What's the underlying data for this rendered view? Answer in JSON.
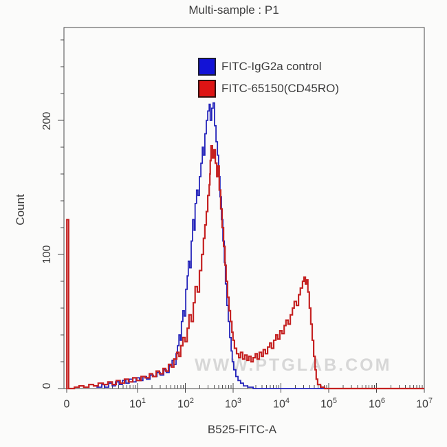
{
  "chart_data": {
    "type": "histogram-overlay",
    "title": "Multi-sample : P1",
    "xlabel": "B525-FITC-A",
    "ylabel": "Count",
    "watermark": "WWW.PTGLAB.COM",
    "x_scale": "biexponential: 0 tick at plot left edge, then log decades 10^1 to 10^7",
    "x_tick_parts": [
      {
        "base": "0",
        "exp": ""
      },
      {
        "base": "10",
        "exp": "1"
      },
      {
        "base": "10",
        "exp": "2"
      },
      {
        "base": "10",
        "exp": "3"
      },
      {
        "base": "10",
        "exp": "4"
      },
      {
        "base": "10",
        "exp": "5"
      },
      {
        "base": "10",
        "exp": "6"
      },
      {
        "base": "10",
        "exp": "7"
      }
    ],
    "y_tick_labels": [
      "0",
      "100",
      "200"
    ],
    "ylim": [
      0,
      269
    ],
    "grid": false,
    "legend_position": "top-center-inside",
    "point_format": "[fraction of x-axis width from 0-tick to 10^7, count]",
    "series": [
      {
        "name": "FITC-IgG2a control",
        "color": "#2424ba",
        "width": 1.8,
        "peak_summary": "single peak near 2.5x10^2, count ~213",
        "points": [
          [
            0.09,
            1
          ],
          [
            0.105,
            3
          ],
          [
            0.113,
            1
          ],
          [
            0.124,
            4
          ],
          [
            0.134,
            2
          ],
          [
            0.143,
            5
          ],
          [
            0.153,
            3
          ],
          [
            0.162,
            6
          ],
          [
            0.172,
            4
          ],
          [
            0.181,
            7
          ],
          [
            0.191,
            5
          ],
          [
            0.2,
            8
          ],
          [
            0.21,
            6
          ],
          [
            0.219,
            9
          ],
          [
            0.229,
            7
          ],
          [
            0.239,
            10
          ],
          [
            0.248,
            9
          ],
          [
            0.258,
            12
          ],
          [
            0.267,
            10
          ],
          [
            0.277,
            14
          ],
          [
            0.284,
            12
          ],
          [
            0.292,
            17
          ],
          [
            0.3,
            21
          ],
          [
            0.305,
            18
          ],
          [
            0.311,
            26
          ],
          [
            0.315,
            32
          ],
          [
            0.319,
            40
          ],
          [
            0.323,
            36
          ],
          [
            0.326,
            50
          ],
          [
            0.33,
            58
          ],
          [
            0.334,
            54
          ],
          [
            0.338,
            74
          ],
          [
            0.342,
            84
          ],
          [
            0.345,
            95
          ],
          [
            0.349,
            90
          ],
          [
            0.353,
            110
          ],
          [
            0.357,
            126
          ],
          [
            0.361,
            118
          ],
          [
            0.364,
            138
          ],
          [
            0.368,
            148
          ],
          [
            0.372,
            144
          ],
          [
            0.376,
            158
          ],
          [
            0.38,
            168
          ],
          [
            0.384,
            180
          ],
          [
            0.387,
            174
          ],
          [
            0.391,
            190
          ],
          [
            0.395,
            200
          ],
          [
            0.399,
            207
          ],
          [
            0.403,
            212
          ],
          [
            0.406,
            200
          ],
          [
            0.41,
            209
          ],
          [
            0.414,
            213
          ],
          [
            0.418,
            196
          ],
          [
            0.422,
            184
          ],
          [
            0.426,
            174
          ],
          [
            0.429,
            158
          ],
          [
            0.433,
            143
          ],
          [
            0.437,
            126
          ],
          [
            0.441,
            110
          ],
          [
            0.445,
            94
          ],
          [
            0.448,
            78
          ],
          [
            0.452,
            62
          ],
          [
            0.456,
            50
          ],
          [
            0.46,
            38
          ],
          [
            0.464,
            28
          ],
          [
            0.467,
            20
          ],
          [
            0.471,
            14
          ],
          [
            0.477,
            9
          ],
          [
            0.483,
            6
          ],
          [
            0.49,
            4
          ],
          [
            0.498,
            2
          ],
          [
            0.51,
            1
          ],
          [
            0.525,
            0
          ],
          [
            1.0,
            0
          ]
        ]
      },
      {
        "name": "FITC-65150(CD45RO)",
        "color": "#c52222",
        "width": 2.2,
        "peak_summary": "spike at 0 count ~126; main peak near 3x10^2 count ~181; second peak near 2.5x10^4 count ~83",
        "points": [
          [
            0.006,
            0
          ],
          [
            0.008,
            126
          ],
          [
            0.011,
            126
          ],
          [
            0.013,
            0
          ],
          [
            0.029,
            1
          ],
          [
            0.042,
            2
          ],
          [
            0.055,
            1
          ],
          [
            0.069,
            3
          ],
          [
            0.082,
            2
          ],
          [
            0.095,
            4
          ],
          [
            0.109,
            3
          ],
          [
            0.122,
            5
          ],
          [
            0.134,
            3
          ],
          [
            0.145,
            6
          ],
          [
            0.156,
            4
          ],
          [
            0.168,
            7
          ],
          [
            0.179,
            5
          ],
          [
            0.191,
            8
          ],
          [
            0.202,
            6
          ],
          [
            0.214,
            9
          ],
          [
            0.225,
            8
          ],
          [
            0.237,
            11
          ],
          [
            0.246,
            9
          ],
          [
            0.256,
            13
          ],
          [
            0.265,
            11
          ],
          [
            0.275,
            15
          ],
          [
            0.282,
            13
          ],
          [
            0.29,
            18
          ],
          [
            0.298,
            16
          ],
          [
            0.305,
            22
          ],
          [
            0.313,
            27
          ],
          [
            0.319,
            24
          ],
          [
            0.324,
            32
          ],
          [
            0.33,
            38
          ],
          [
            0.336,
            35
          ],
          [
            0.342,
            45
          ],
          [
            0.347,
            55
          ],
          [
            0.353,
            50
          ],
          [
            0.359,
            64
          ],
          [
            0.364,
            76
          ],
          [
            0.37,
            72
          ],
          [
            0.376,
            88
          ],
          [
            0.382,
            100
          ],
          [
            0.387,
            112
          ],
          [
            0.391,
            122
          ],
          [
            0.395,
            132
          ],
          [
            0.399,
            144
          ],
          [
            0.403,
            152
          ],
          [
            0.405,
            160
          ],
          [
            0.406,
            170
          ],
          [
            0.408,
            181
          ],
          [
            0.412,
            172
          ],
          [
            0.416,
            178
          ],
          [
            0.42,
            168
          ],
          [
            0.424,
            158
          ],
          [
            0.427,
            166
          ],
          [
            0.431,
            148
          ],
          [
            0.435,
            134
          ],
          [
            0.439,
            120
          ],
          [
            0.443,
            106
          ],
          [
            0.447,
            92
          ],
          [
            0.45,
            80
          ],
          [
            0.454,
            68
          ],
          [
            0.458,
            58
          ],
          [
            0.462,
            50
          ],
          [
            0.466,
            42
          ],
          [
            0.469,
            36
          ],
          [
            0.473,
            30
          ],
          [
            0.479,
            26
          ],
          [
            0.485,
            23
          ],
          [
            0.49,
            27
          ],
          [
            0.496,
            22
          ],
          [
            0.502,
            25
          ],
          [
            0.508,
            21
          ],
          [
            0.513,
            24
          ],
          [
            0.519,
            20
          ],
          [
            0.525,
            23
          ],
          [
            0.531,
            26
          ],
          [
            0.536,
            22
          ],
          [
            0.542,
            27
          ],
          [
            0.548,
            24
          ],
          [
            0.553,
            29
          ],
          [
            0.559,
            26
          ],
          [
            0.565,
            31
          ],
          [
            0.571,
            34
          ],
          [
            0.576,
            30
          ],
          [
            0.582,
            36
          ],
          [
            0.588,
            40
          ],
          [
            0.593,
            37
          ],
          [
            0.599,
            43
          ],
          [
            0.605,
            41
          ],
          [
            0.611,
            47
          ],
          [
            0.616,
            51
          ],
          [
            0.622,
            48
          ],
          [
            0.628,
            55
          ],
          [
            0.634,
            60
          ],
          [
            0.639,
            65
          ],
          [
            0.645,
            62
          ],
          [
            0.651,
            70
          ],
          [
            0.656,
            75
          ],
          [
            0.662,
            80
          ],
          [
            0.666,
            83
          ],
          [
            0.67,
            78
          ],
          [
            0.674,
            81
          ],
          [
            0.677,
            72
          ],
          [
            0.681,
            60
          ],
          [
            0.685,
            48
          ],
          [
            0.689,
            36
          ],
          [
            0.693,
            24
          ],
          [
            0.697,
            14
          ],
          [
            0.7,
            7
          ],
          [
            0.704,
            3
          ],
          [
            0.712,
            1
          ],
          [
            0.723,
            0
          ],
          [
            1.0,
            0
          ]
        ]
      }
    ],
    "colors": {
      "legend_blue_fill": "#1212d6",
      "legend_red_fill": "#dd1414",
      "frame": "#4a4a4a",
      "text": "#3d3d3d",
      "watermark": "#bababa"
    }
  }
}
